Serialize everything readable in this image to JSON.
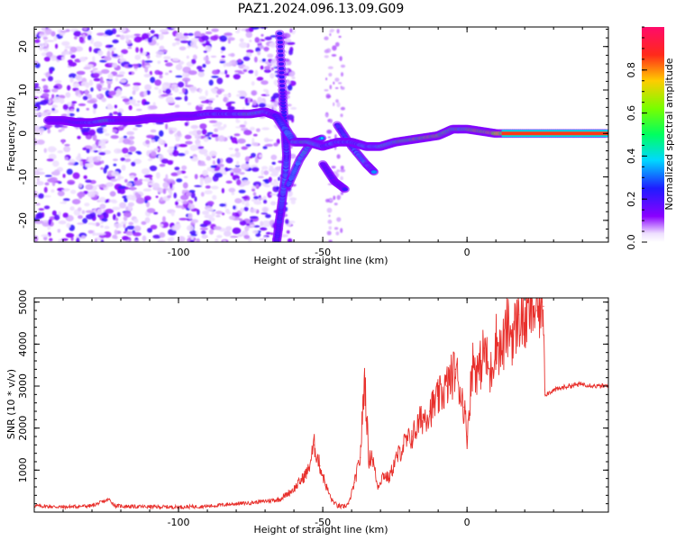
{
  "title": "PAZ1.2024.096.13.09.G09",
  "chart_data": [
    {
      "type": "heatmap",
      "title": "PAZ1.2024.096.13.09.G09",
      "xlabel": "Height of straight line (km)",
      "ylabel": "Frequency (Hz)",
      "xlim": [
        -150,
        49
      ],
      "ylim": [
        -25,
        24.5
      ],
      "xticks": [
        -100,
        -50,
        0
      ],
      "xtick_labels": [
        "-100",
        "-50",
        "0"
      ],
      "yticks": [
        -20,
        -10,
        0,
        10,
        20
      ],
      "ytick_labels": [
        "-20",
        "-10",
        "0",
        "10",
        "20"
      ],
      "colorbar": {
        "label": "Normalized spectral amplitude",
        "range": [
          0,
          1
        ],
        "ticks": [
          0.0,
          0.2,
          0.4,
          0.6,
          0.8
        ],
        "tick_labels": [
          "0.0",
          "0.2",
          "0.4",
          "0.6",
          "0.8"
        ],
        "colormap": "gist_rainbow_r"
      },
      "ridge": {
        "x": [
          -145,
          -140,
          -135,
          -130,
          -125,
          -120,
          -115,
          -110,
          -105,
          -100,
          -95,
          -90,
          -85,
          -80,
          -75,
          -70,
          -66,
          -60,
          -55,
          -50,
          -45,
          -40,
          -35,
          -30,
          -25,
          -20,
          -15,
          -10,
          -5,
          0,
          5,
          10,
          20,
          30,
          40,
          49
        ],
        "frequency": [
          3,
          3,
          2.5,
          2.5,
          3,
          3,
          3,
          3.5,
          3.5,
          4,
          4,
          4.5,
          4.5,
          4.5,
          4.5,
          5,
          4,
          -2,
          -2,
          -3,
          -2,
          -2,
          -3,
          -3,
          -2,
          -1.5,
          -1,
          -0.5,
          1,
          1,
          0.5,
          0,
          0,
          0,
          0,
          0
        ],
        "amplitude": [
          0.15,
          0.2,
          0.25,
          0.3,
          0.45,
          0.2,
          0.15,
          0.15,
          0.15,
          0.2,
          0.2,
          0.3,
          0.3,
          0.35,
          0.45,
          0.4,
          0.25,
          0.35,
          0.45,
          0.3,
          0.35,
          0.3,
          0.35,
          0.4,
          0.45,
          0.55,
          0.6,
          0.6,
          0.5,
          0.5,
          0.65,
          0.7,
          0.85,
          0.9,
          0.9,
          0.9
        ]
      },
      "branches": [
        {
          "x": [
            -66,
            -65,
            -64,
            -63,
            -62.5,
            -63,
            -64,
            -65
          ],
          "frequency": [
            -25,
            -20,
            -15,
            -10,
            -5,
            0,
            10,
            24
          ],
          "amplitude": [
            0.25,
            0.25,
            0.3,
            0.35,
            0.3,
            0.25,
            0.2,
            0.2
          ]
        },
        {
          "x": [
            -62,
            -58,
            -54,
            -50
          ],
          "frequency": [
            -12,
            -6,
            -2,
            -1
          ],
          "amplitude": [
            0.3,
            0.35,
            0.4,
            0.35
          ]
        },
        {
          "x": [
            -45,
            -40,
            -35,
            -32
          ],
          "frequency": [
            2,
            -3,
            -7,
            -9
          ],
          "amplitude": [
            0.25,
            0.3,
            0.35,
            0.3
          ]
        },
        {
          "x": [
            -50,
            -46,
            -42
          ],
          "frequency": [
            -7,
            -11,
            -13
          ],
          "amplitude": [
            0.2,
            0.25,
            0.2
          ]
        }
      ]
    },
    {
      "type": "line",
      "xlabel": "Height of straight line (km)",
      "ylabel": "SNR (10 * v/v)",
      "xlim": [
        -150,
        49
      ],
      "ylim": [
        0,
        5100
      ],
      "xticks": [
        -100,
        -50,
        0
      ],
      "xtick_labels": [
        "-100",
        "-50",
        "0"
      ],
      "yticks": [
        1000,
        2000,
        3000,
        4000,
        5000
      ],
      "ytick_labels": [
        "1000",
        "2000",
        "3000",
        "4000",
        "5000"
      ],
      "color": "#e8302c",
      "x": [
        -150,
        -140,
        -130,
        -124,
        -122,
        -115,
        -100,
        -90,
        -80,
        -75,
        -70,
        -65,
        -60,
        -57,
        -55,
        -53,
        -51,
        -49,
        -47,
        -45,
        -43,
        -41,
        -39,
        -37,
        -35.5,
        -34,
        -33,
        -31,
        -29,
        -27,
        -25,
        -22,
        -19,
        -16,
        -13,
        -10,
        -7,
        -4,
        -1,
        0,
        2,
        4,
        6,
        8,
        10,
        12,
        14,
        16,
        18,
        20,
        22,
        24,
        26,
        26.5,
        27,
        30,
        35,
        40,
        45,
        49
      ],
      "snr": [
        150,
        120,
        150,
        300,
        150,
        130,
        120,
        140,
        200,
        220,
        260,
        300,
        550,
        800,
        1000,
        1600,
        1100,
        650,
        300,
        150,
        120,
        200,
        700,
        1300,
        3250,
        1200,
        1400,
        600,
        900,
        800,
        1200,
        1600,
        1800,
        2200,
        2400,
        2700,
        3000,
        3400,
        2500,
        1800,
        3600,
        3300,
        3900,
        3200,
        4100,
        3800,
        4400,
        4200,
        4700,
        4500,
        4900,
        4800,
        5000,
        4900,
        2800,
        2900,
        3000,
        3050,
        3000,
        3000
      ]
    }
  ]
}
